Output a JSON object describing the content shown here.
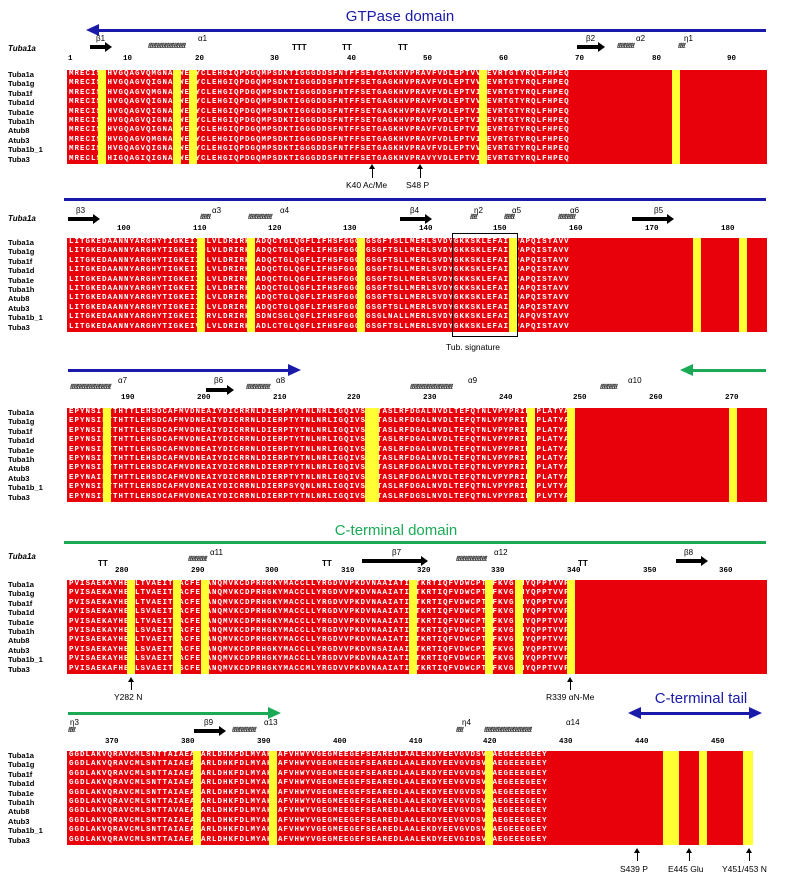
{
  "titles": {
    "gtpase": "GTPase domain",
    "cterm": "C-terminal domain",
    "ctail": "C-terminal tail"
  },
  "colors": {
    "domain_blue": "#1a1aaa",
    "domain_green": "#1aaa55",
    "conserved_bg": "#e8000b",
    "similar_bg": "#ffff33"
  },
  "reference": "Tuba1a",
  "names": [
    "Tuba1a",
    "Tuba1g",
    "Tuba1f",
    "Tuba1d",
    "Tuba1e",
    "Tuba1h",
    "Atub8",
    "Atub3",
    "Tuba1b_1",
    "Tuba3"
  ],
  "blocks": [
    {
      "ticks": [
        "1",
        "10",
        "20",
        "30",
        "40",
        "50",
        "60",
        "70",
        "80",
        "90"
      ],
      "ss": [
        "β1",
        "α1",
        "TTT",
        "TT",
        "TT",
        "β2",
        "α2",
        "η1"
      ],
      "rows": [
        "MRECISIHVGQAGVQMGNACWELYCLEHGIQPDGQMPSDKTIGGGDDSFNTFFSETGAGKHVPRAVFVDLEPTVVDEVRTGTYRQLFHPEQ",
        "MRECISIHVGQAGVQIGNACWELYCLEHGIQPDGQMPSDKTIGGGDDSFNTFFSETGAGKHVPRAVFVDLEPTVVDEVRTGTYRQLFHPEQ",
        "MRECISVHVGQAGVQMGNACWELYCLEHGIQPDGQMPSDKTIGGGDDSFNTFFSETGAGKHVPRAVFVDLEPTVIDEVRTGTYRQLFHPEQ",
        "MRECISIHVGQAGVQIGNACWELYCLEHGIQPDGQMPSDKTIGGGDDSFNTFFSETGAGKHVPRAVFVDLEPTVVDEVRTGTYRQLFHPEQ",
        "MRECISIHVGQAGVQIGNACWELYCLEHGIQPDGQMPSDKTIGGGDDSFNTFFSETGAGKHVPRAVFVDLEPTVIDEVRTGTYRQLFHPEQ",
        "MRECISIHVGQAGVQIGNACWELYCLEHGIQPDGQMPSDKTIGGGDDSFNTFFSETGAGKHVPRAVFVDLEPTVIDEVRTGTYRQLFHPEQ",
        "MRECISIHVGQAGVQIGNACWELYCLEHGIQPDGQMPSDKTIGGGDDSFNTFFSETGAGKHVPRAVFVDLEPTVIDEVRTGTYRQLFHPEQ",
        "MRECISVHVGQAGVQMGNACWELYCLEHGIQPDGQMPSDKTIGGGDDSFNTFFSETGAGKHVPRAVFVDLEPTVIDEVRTGTYRQLFHPEQ",
        "MRECISIHVGQAGVQIGNACWELYCLEHGIQPDGQMPSDKTIGGGDDSFNTFFSETGAGKHVPRAVFVDLEPTVVDEVRTGTYRQLFHPEQ",
        "MRECLSIHIGQAGIQIGNACWELYCLEHGIQPDGQMPSDKTIGGGDDSFNTFFSETGAGKHVPRAVYVDLEPTVIDEVRTGTYRQLFHPEQ"
      ],
      "annotations": [
        "K40 Ac/Me",
        "S48 P"
      ]
    },
    {
      "ticks": [
        "100",
        "110",
        "120",
        "130",
        "140",
        "150",
        "160",
        "170",
        "180"
      ],
      "ss": [
        "β3",
        "α3",
        "α4",
        "β4",
        "η2",
        "α5",
        "α6",
        "β5"
      ],
      "rows": [
        "LITGKEDAANNYARGHYTIGKEIIDLVLDRIRKLADQCTGLQGFLIFHSFGGGTGSGFTSLLMERLSVDYGKKSKLEFAIYPAPQISTAVV",
        "LITGKEDAANNYARGHYTIGKEIIDLVLDRIRKLADQCTGLQGFLIFHSFGGGTGSGFTSLLMERLSVDYGKKSKLEFAIYPAPQISTAVV",
        "LITGKEDAANNYARGHYTIGKEIIDLVLDRIRKLADQCTGLQGFLIFHSFGGGTGSGFTSLLMERLSVDYGKKSKLEFAIYPAPQISTAVV",
        "LITGKEDAANNYARGHYTIGKEIIDLVLDRIRKLADQCTGLQGFLIFHSFGGGTGSGFTSLLMERLSVDYGKKSKLEFAIYPAPQISTAVV",
        "LITGKEDAANNYARGHYTIGKEIIDLVLDRIRKLADQCTGLQGFLIFHSFGGGTGSGFTSLLMERLSVDYGKKSKLEFAIYPAPQISTAVV",
        "LITGKEDAANNYARGHYTIGKEIIDLVLDRIRKLADQCTGLQGFLIFHSFGGGTGSGFTSLLMERLSVDYGKKSKLEFAIYPAPQISTAVV",
        "LITGKEDAANNYARGHYTIGKEIIDLVLDRIRKLADQCTGLQGFLIFHSFGGGTGSGFTSLLMERLSVDYGKKSKLEFAIYPAPQISTAVV",
        "LITGKEDAANNYARGHYTIGKEIIDLVLDRIRKLADQCTGLQGFLIFHSFGGGTGSGFTSLLMERLSVDYGKKSKLEFAIYPAPQISTAVV",
        "LITGKEDAANNYARGHYTIGKEIIDRVLDRIRKLSDNCSGLQGFLIFHSFGGGTGSGLNALLMERLSVDYGKKSKLEFAIYPAPQVSTAVV",
        "LITGKEDAANNYARGHYTIGKEIVDLVLDRIRKLADLCTGLQGFLIFHSFGGGTGSGFTSLLMERLSVDYGKKSKLEFAIYPAPQISTAVV"
      ],
      "annotations": [
        "Tub. signature"
      ]
    },
    {
      "ticks": [
        "190",
        "200",
        "210",
        "220",
        "230",
        "240",
        "250",
        "260",
        "270"
      ],
      "ss": [
        "α7",
        "β6",
        "α8",
        "α9",
        "α10"
      ],
      "rows": [
        "EPYNSILTTHTTLEHSDCAFMVDNEAIYDICRRNLDIERPTYTNLNRLIGQIVSSITASLRFDGALNVDLTEFQTNLVPYPRIHFPLATYA",
        "EPYNSILTTHTTLEHSDCAFMVDNEAIYDICRRNLDIERPTYTNLNRLIGQIVSSITASLRFDGALNVDLTEFQTNLVPYPRIHFPLATYA",
        "EPYNSILTTHTTLEHSDCAFMVDNEAIYDICRRNLDIERPTYTNLNRLIGQIVSSITASLRFDGALNVDLTEFQTNLVPYPRIHFPLATYA",
        "EPYNSILTTHTTLEHSDCAFMVDNEAIYDICRRNLDIERPTYTNLNRLIGQIVSSITASLRFDGALNVDLTEFQTNLVPYPRIHFPLATYA",
        "EPYNSILTTHTTLEHSDCAFMVDNEAIYDICRRNLDIERPTYTNLNRLIGQIVSSITASLRFDGALNVDLTEFQTNLVPYPRIHFPLATYA",
        "EPYNSILTTHTTLEHSDCAFMVDNEAIYDICRRNLDIERPTYTNLNRLIGQIVSSITASLRFDGALNVDLTEFQTNLVPYPRIHFPLATYA",
        "EPYNSILTTHTTLEHSDCAFMVDNEAIYDICRRNLDIERPTYTNLNRLIGQIVSSITASLRFDGALNVDLTEFQTNLVPYPRIHFPLATYA",
        "EPYNAILTTHTTLEHSDCAFMVDNEAIYDICRRNLDIERPTYTNLNRLIGQIVSSITASLRFDGALNVDLTEFQTNLVPYPRIHFPLATYA",
        "EPYNSILTTHTTLEHSDCAFMVDNEAIYDICRRNLDIERPSYQNLNRLIGQIVSSITASLRFDGALNVDLTEFQTNLVPYPRIHFPLVTYA",
        "EPYNSILTTHTTLEHSDCAFMVDNEAIYDICRRNLDIERPTYTNLNRLIGQIVSSITASLRFDGSLNVDLTEFQTNLVPYPRIHFPLVTYA"
      ],
      "annotations": []
    },
    {
      "ticks": [
        "280",
        "290",
        "300",
        "310",
        "320",
        "330",
        "340",
        "350",
        "360"
      ],
      "ss": [
        "TT",
        "α11",
        "TT",
        "β7",
        "α12",
        "TT",
        "β8"
      ],
      "rows": [
        "PVISAEKAYHEQLTVAEITNACFEPANQMVKCDPRHGKYMACCLLYRGDVVPKDVNAAIATIKTKRTIQFVDWCPTGFKVGINYQPPTVVP",
        "PVISAEKAYHEQLTVAEITNACFEPANQMVKCDPRHGKYMACCLLYRGDVVPKDVNAAIATIKTKRTIQFVDWCPTGFKVGINYQPPTVVP",
        "PVISAEKAYHEQLTVAEITNACFEPANQMVKCDPRHGKYMACCLLYRGDVVPKDVNAAIATIKTKRTIQFVDWCPTGFKVGINYQPPTVVP",
        "PVISAEKAYHEQLSVAEITNACFEPANQMVKCDPRHGKYMACCLLYRGDVVPKDVNAAIATIKTKRTIQFVDWCPTGFKVGINYQPPTVVP",
        "PVISAEKAYHEQLTVAEITNACFEPANQMVKCDPRHGKYMACCLLYRGDVVPKDVNAAIATIKTKRTIQFVDWCPTGFKVGINYQPPTVVP",
        "PVISAEKAYHEQLSVAEITNACFEPANQMVKCDPRHGKYMACCLLYRGDVVPKDVNAAIATIKTKRTIQFVDWCPTGFKVGINYQPPTVVP",
        "PVISAEKAYHEQLTVAEITNACFEPANQMVKCDPRHGKYMACCLLYRGDVVPKDVNAAIATIKTKRTIQFVDWCPTGFKVGINYQPPTVVP",
        "PVISAEKAYHEQLSVAEITNACFEPANQMVKCDPRHGKYMACCLLYRGDVVPKDVNSAIAAIKTKRTIQFVDWCPTGFKVGINYQPPTVVP",
        "PVISAEKAYHEQLSVAEITNACFEPANQMVKCDPRHGKYMACCLLYRGDVVPKDVNAAIATIKTKRTIQFVDWCPTGFKVGINYQPPTVVP",
        "PVISAEKAFHEQLSVAEITSSCFEPANQMVKCDPRHGKYMACCMLYRGDVVPKDVNAAIATIKTKRTIQFVDWCPTGFKVGINYQPPTVVP"
      ],
      "annotations": [
        "Y282 N",
        "R339 αN-Me"
      ]
    },
    {
      "ticks": [
        "370",
        "380",
        "390",
        "400",
        "410",
        "420",
        "430",
        "440",
        "450"
      ],
      "ss": [
        "η3",
        "β9",
        "α13",
        "η4",
        "α14"
      ],
      "rows": [
        "GGDLAKVQRAVCMLSNTTAIAEAWARLDHKFDLMYAKRAFVHWYVGEGMEEGEFSEAREDLAALEKDYEEVGVDSVEAEGEEEGEEY",
        "GGDLAKVQRAVCMLSNTTAIAEAWARLDHKFDLMYAKRAFVHWYVGEGMEEGEFSEAREDLAALEKDYEEVGVDSVEAEGEEEGEEY",
        "GGDLAKVQRAVCMLSNTTAIAEAWARLDHKFDLMYAKRAFVHWYVGEGMEEGEFSEAREDLAALEKDYEEVGVDSVEAEGEEEGEEY",
        "GGDLAKVQRAVCMLSNTTAIAEAWARLDHKFDLMYAKRAFVHWYVGEGMEEGEFSEAREDLAALEKDYEEVGVDSVEAEGEEEGEEY",
        "GGDLAKVQRAVCMLSNTTAIAEAWARLDHKFDLMYAKRAFVHWYVGEGMEEGEFSEAREDLAALEKDYEEVGVDSVEAEGEEEGEEY",
        "GGDLAKVQRAVCMLSNTTAIAEAWARLDHKFDLMYAKRAFVHWYVGEGMEEGEFSEAREDLAALEKDYEEVGVDSVEAEGEEEGEEY",
        "GGDLAKVQRAVCMLSNTTAVAEAWARLDHKFDLMYAKRAFVHWYVGEGMEEGEFSEAREDLAALEKDYEEVGVDSVEAEGEEEGEEY",
        "GGDLAKVQRAVCMLSNTTAIAEAWARLDHKFDLMYAKRAFVHWYVGEGMEEGEFSEAREDLAALEKDYEEVGVDSVEAEGEEEGEEY",
        "GGDLAKVQRAVCMLSNTTAIAEAWARLDHKFDLMYAKRAFVHWYVGEGMEEGEFSEAREDLAALEKDYEEVGVDSVEAEGEEEGEEY",
        "GGDLAKVQRAVCMLSNTTAIAEAWARLDHKFDLMYAKRAFVHWYVGEGMEEGEFSEAREDLAALEKDYEEVGIDSVLAEGEEEGEEY"
      ],
      "annotations": [
        "S439 P",
        "E445 Glu",
        "Y451/453 N"
      ]
    }
  ]
}
